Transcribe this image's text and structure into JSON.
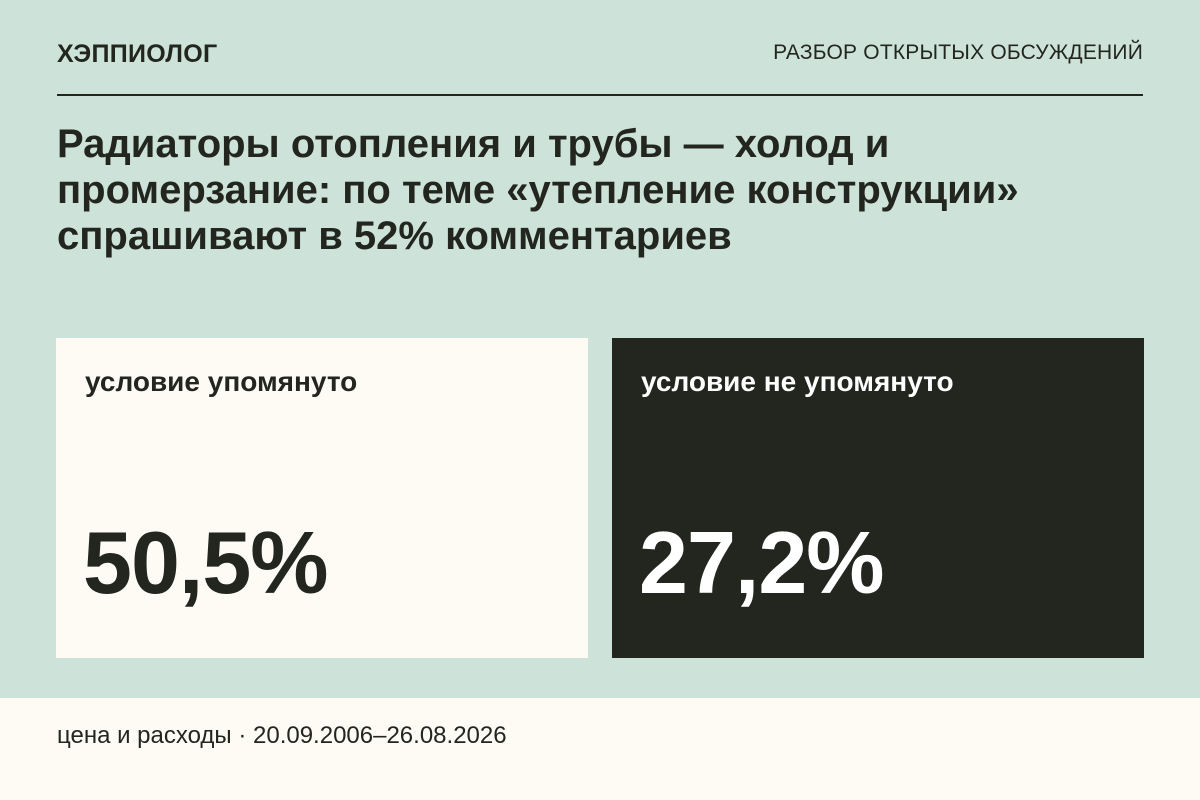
{
  "header": {
    "brand": "ХЭППИОЛОГ",
    "section": "РАЗБОР ОТКРЫТЫХ ОБСУЖДЕНИЙ"
  },
  "headline": "Радиаторы отопления и трубы — холод и промерзание: по теме «утепление конструкции» спрашивают в 52% комментариев",
  "cards": [
    {
      "label": "условие упомянуто",
      "value": "50,5%"
    },
    {
      "label": "условие не упомянуто",
      "value": "27,2%"
    }
  ],
  "footer": {
    "text": "цена и расходы · 20.09.2006–26.08.2026"
  },
  "colors": {
    "background": "#cde3d9",
    "light_card": "#fdfbf3",
    "dark_card": "#22261f",
    "text_dark": "#22261f",
    "text_light": "#ffffff"
  }
}
